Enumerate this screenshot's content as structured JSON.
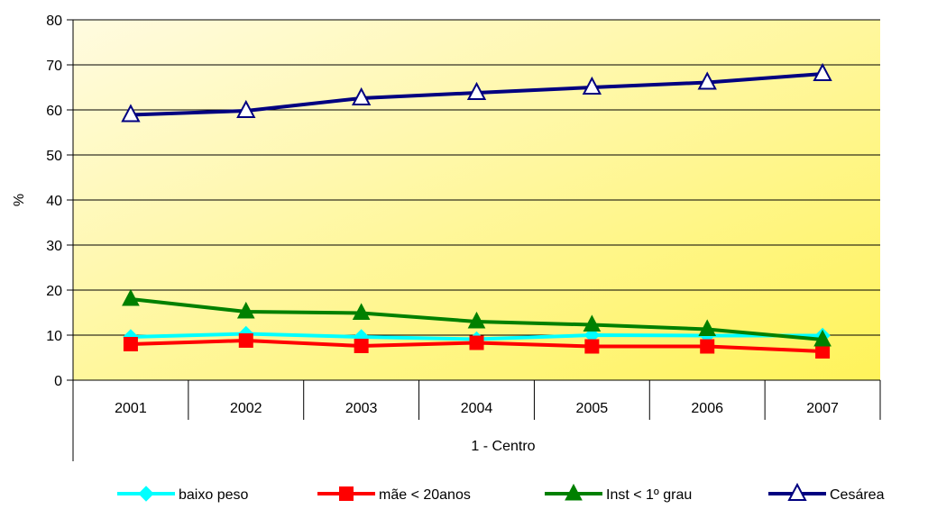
{
  "chart_data": {
    "type": "line",
    "categories": [
      "2001",
      "2002",
      "2003",
      "2004",
      "2005",
      "2006",
      "2007"
    ],
    "group_label": "1 - Centro",
    "ylabel": "%",
    "ylim": [
      0,
      80
    ],
    "yticks": [
      "0",
      "10",
      "20",
      "30",
      "40",
      "50",
      "60",
      "70",
      "80"
    ],
    "grid": true,
    "legend_position": "bottom",
    "plot_background": [
      "#fffbe0",
      "#fff35a"
    ],
    "series": [
      {
        "name": "baixo peso",
        "color": "#00ffff",
        "marker": "diamond",
        "values": [
          9.6,
          10.3,
          9.6,
          9.1,
          10.0,
          9.9,
          9.9
        ]
      },
      {
        "name": "mãe < 20anos",
        "color": "#ff0000",
        "marker": "square",
        "values": [
          8.0,
          8.8,
          7.6,
          8.3,
          7.5,
          7.5,
          6.4
        ]
      },
      {
        "name": "Inst < 1º grau",
        "color": "#008000",
        "marker": "triangle",
        "values": [
          18.0,
          15.2,
          14.9,
          13.0,
          12.3,
          11.3,
          9.0
        ]
      },
      {
        "name": "Cesárea",
        "color": "#000080",
        "marker": "triangle-open",
        "values": [
          58.9,
          59.8,
          62.6,
          63.8,
          65.0,
          66.1,
          68.0
        ]
      }
    ]
  }
}
